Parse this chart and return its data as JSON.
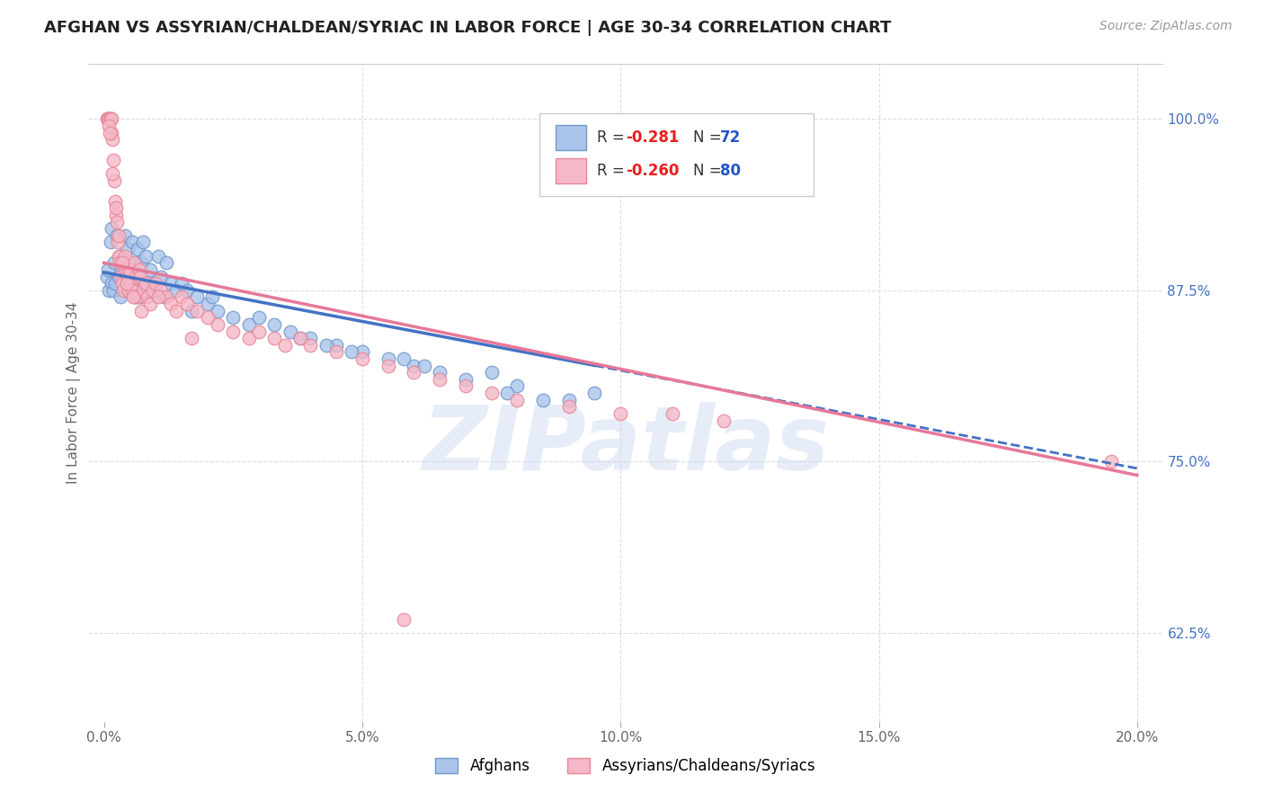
{
  "title": "AFGHAN VS ASSYRIAN/CHALDEAN/SYRIAC IN LABOR FORCE | AGE 30-34 CORRELATION CHART",
  "source": "Source: ZipAtlas.com",
  "xlabel_vals": [
    0.0,
    5.0,
    10.0,
    15.0,
    20.0
  ],
  "ylabel_vals": [
    62.5,
    75.0,
    87.5,
    100.0
  ],
  "xlim": [
    -0.3,
    20.5
  ],
  "ylim": [
    56.0,
    104.0
  ],
  "ylabel": "In Labor Force | Age 30-34",
  "blue_label": "Afghans",
  "pink_label": "Assyrians/Chaldeans/Syriacs",
  "blue_R": "-0.281",
  "blue_N": "72",
  "pink_R": "-0.260",
  "pink_N": "80",
  "blue_color": "#aac4ea",
  "pink_color": "#f5b8c8",
  "blue_edge": "#7099cc",
  "pink_edge": "#e88898",
  "blue_line_color": "#4472c4",
  "pink_line_color": "#e87898",
  "legend_R_color": "#e82020",
  "legend_N_color": "#2255cc",
  "background_color": "#ffffff",
  "grid_color": "#dddddd",
  "watermark": "ZIPatlas",
  "blue_line_x0": 0.0,
  "blue_line_y0": 88.8,
  "blue_line_x1": 20.0,
  "blue_line_y1": 74.5,
  "blue_dash_start": 9.5,
  "pink_line_x0": 0.0,
  "pink_line_y0": 89.5,
  "pink_line_x1": 20.0,
  "pink_line_y1": 74.0,
  "blue_scatter_x": [
    0.05,
    0.08,
    0.1,
    0.12,
    0.15,
    0.15,
    0.18,
    0.2,
    0.22,
    0.25,
    0.28,
    0.3,
    0.32,
    0.35,
    0.38,
    0.4,
    0.42,
    0.45,
    0.48,
    0.5,
    0.52,
    0.55,
    0.58,
    0.6,
    0.62,
    0.65,
    0.68,
    0.7,
    0.72,
    0.75,
    0.78,
    0.8,
    0.85,
    0.9,
    0.95,
    1.0,
    1.05,
    1.1,
    1.15,
    1.2,
    1.3,
    1.4,
    1.5,
    1.6,
    1.8,
    2.0,
    2.2,
    2.5,
    2.8,
    3.0,
    3.3,
    3.6,
    4.0,
    4.5,
    5.0,
    5.5,
    6.0,
    6.5,
    7.0,
    7.5,
    8.0,
    9.0,
    1.7,
    2.1,
    3.8,
    4.3,
    4.8,
    5.8,
    6.2,
    7.8,
    8.5,
    9.5
  ],
  "blue_scatter_y": [
    88.5,
    89.0,
    87.5,
    91.0,
    88.0,
    92.0,
    87.5,
    89.5,
    88.0,
    91.5,
    88.5,
    90.0,
    87.0,
    89.0,
    88.5,
    91.5,
    87.5,
    90.5,
    88.0,
    89.0,
    87.5,
    91.0,
    88.0,
    89.5,
    87.0,
    90.5,
    88.5,
    87.0,
    89.5,
    91.0,
    88.0,
    90.0,
    87.5,
    89.0,
    88.0,
    87.5,
    90.0,
    88.5,
    87.0,
    89.5,
    88.0,
    87.5,
    88.0,
    87.5,
    87.0,
    86.5,
    86.0,
    85.5,
    85.0,
    85.5,
    85.0,
    84.5,
    84.0,
    83.5,
    83.0,
    82.5,
    82.0,
    81.5,
    81.0,
    81.5,
    80.5,
    79.5,
    86.0,
    87.0,
    84.0,
    83.5,
    83.0,
    82.5,
    82.0,
    80.0,
    79.5,
    80.0
  ],
  "pink_scatter_x": [
    0.05,
    0.07,
    0.08,
    0.1,
    0.12,
    0.12,
    0.14,
    0.15,
    0.16,
    0.18,
    0.2,
    0.22,
    0.24,
    0.25,
    0.26,
    0.28,
    0.3,
    0.32,
    0.35,
    0.38,
    0.4,
    0.42,
    0.45,
    0.48,
    0.5,
    0.52,
    0.55,
    0.58,
    0.6,
    0.62,
    0.65,
    0.68,
    0.7,
    0.75,
    0.8,
    0.85,
    0.9,
    0.95,
    1.0,
    1.1,
    1.2,
    1.3,
    1.4,
    1.5,
    1.6,
    1.8,
    2.0,
    2.2,
    2.5,
    2.8,
    3.0,
    3.3,
    3.5,
    3.8,
    4.0,
    4.5,
    5.0,
    5.5,
    6.0,
    6.5,
    7.0,
    7.5,
    8.0,
    9.0,
    10.0,
    11.0,
    12.0,
    0.09,
    0.11,
    0.17,
    0.23,
    0.29,
    0.36,
    0.44,
    0.56,
    0.72,
    1.05,
    1.7,
    19.5,
    5.8
  ],
  "pink_scatter_y": [
    100.0,
    100.0,
    100.0,
    100.0,
    100.0,
    100.0,
    99.0,
    100.0,
    98.5,
    97.0,
    95.5,
    94.0,
    93.0,
    92.5,
    91.0,
    90.0,
    89.5,
    88.5,
    88.0,
    87.5,
    90.0,
    89.0,
    88.5,
    87.5,
    89.0,
    88.0,
    87.5,
    89.5,
    87.0,
    88.5,
    87.0,
    89.0,
    88.5,
    87.5,
    88.0,
    87.0,
    86.5,
    87.5,
    88.0,
    87.5,
    87.0,
    86.5,
    86.0,
    87.0,
    86.5,
    86.0,
    85.5,
    85.0,
    84.5,
    84.0,
    84.5,
    84.0,
    83.5,
    84.0,
    83.5,
    83.0,
    82.5,
    82.0,
    81.5,
    81.0,
    80.5,
    80.0,
    79.5,
    79.0,
    78.5,
    78.5,
    78.0,
    99.5,
    99.0,
    96.0,
    93.5,
    91.5,
    89.5,
    88.0,
    87.0,
    86.0,
    87.0,
    84.0,
    75.0,
    63.5
  ]
}
